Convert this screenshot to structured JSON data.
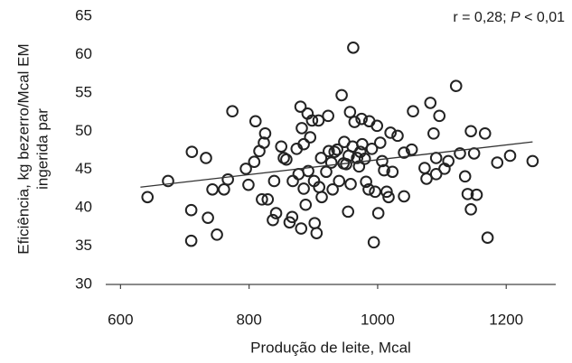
{
  "chart_data": {
    "type": "scatter",
    "annotation": [
      {
        "text": "r = 0,28; "
      },
      {
        "text": "P",
        "italic": true
      },
      {
        "text": " < 0,01"
      }
    ],
    "x_label": "Produção de leite, Mcal",
    "y_label": [
      "Eficiência, kg bezerro/Mcal EM",
      "ingerida par"
    ],
    "xlim": [
      577,
      1277
    ],
    "ylim": [
      30,
      65
    ],
    "xticks": [
      600,
      800,
      1000,
      1200
    ],
    "yticks": [
      30,
      35,
      40,
      45,
      50,
      55,
      60,
      65
    ],
    "marker_color": "#222222",
    "x": [
      642,
      674,
      711,
      710,
      710,
      733,
      736,
      743,
      750,
      761,
      767,
      774,
      795,
      799,
      808,
      810,
      816,
      825,
      823,
      820,
      829,
      837,
      839,
      842,
      850,
      854,
      858,
      863,
      867,
      868,
      874,
      877,
      880,
      882,
      881,
      885,
      885,
      888,
      891,
      892,
      895,
      898,
      901,
      902,
      905,
      908,
      909,
      912,
      913,
      920,
      923,
      924,
      928,
      930,
      933,
      937,
      940,
      944,
      947,
      948,
      951,
      954,
      955,
      957,
      958,
      961,
      962,
      964,
      968,
      971,
      973,
      975,
      976,
      980,
      982,
      986,
      987,
      991,
      994,
      996,
      999,
      1001,
      1004,
      1007,
      1010,
      1014,
      1017,
      1020,
      1023,
      1031,
      1041,
      1041,
      1053,
      1055,
      1073,
      1076,
      1082,
      1087,
      1091,
      1091,
      1096,
      1104,
      1110,
      1122,
      1128,
      1136,
      1140,
      1145,
      1145,
      1150,
      1154,
      1167,
      1171,
      1186,
      1206,
      1241
    ],
    "y": [
      41.4,
      43.5,
      47.3,
      39.7,
      35.7,
      46.5,
      38.7,
      42.4,
      36.5,
      42.4,
      43.7,
      52.6,
      45.1,
      43,
      46,
      51.3,
      47.4,
      49.7,
      48.5,
      41.1,
      41.1,
      38.4,
      43.5,
      39.3,
      48,
      46.5,
      46.3,
      38.1,
      38.8,
      43.5,
      47.7,
      44.4,
      53.2,
      50.4,
      37.3,
      48.3,
      42.5,
      40.4,
      52.3,
      44.8,
      49.2,
      51.4,
      43.5,
      38,
      36.7,
      51.4,
      42.7,
      46.5,
      41.4,
      44.7,
      52,
      47.4,
      45.9,
      42.4,
      47.3,
      47.6,
      43.5,
      54.7,
      45.8,
      48.6,
      45.7,
      39.5,
      46.8,
      52.5,
      43.1,
      48,
      60.9,
      51.2,
      46.5,
      45.4,
      47.3,
      51.6,
      48.3,
      46.4,
      43.4,
      42.4,
      51.3,
      47.7,
      35.5,
      42.1,
      50.7,
      39.3,
      48.5,
      46.1,
      44.9,
      42.1,
      41.4,
      49.8,
      44.7,
      49.4,
      41.5,
      47.2,
      47.6,
      52.6,
      45.2,
      43.8,
      53.7,
      49.7,
      46.5,
      44.4,
      52,
      45.1,
      46.1,
      55.9,
      47.1,
      44.1,
      41.8,
      50,
      39.8,
      47.1,
      41.7,
      49.7,
      36.1,
      45.9,
      46.8,
      46.1
    ],
    "trend_line": {
      "x": [
        631,
        1241
      ],
      "y": [
        42.7,
        48.6
      ],
      "color": "#333333"
    }
  }
}
